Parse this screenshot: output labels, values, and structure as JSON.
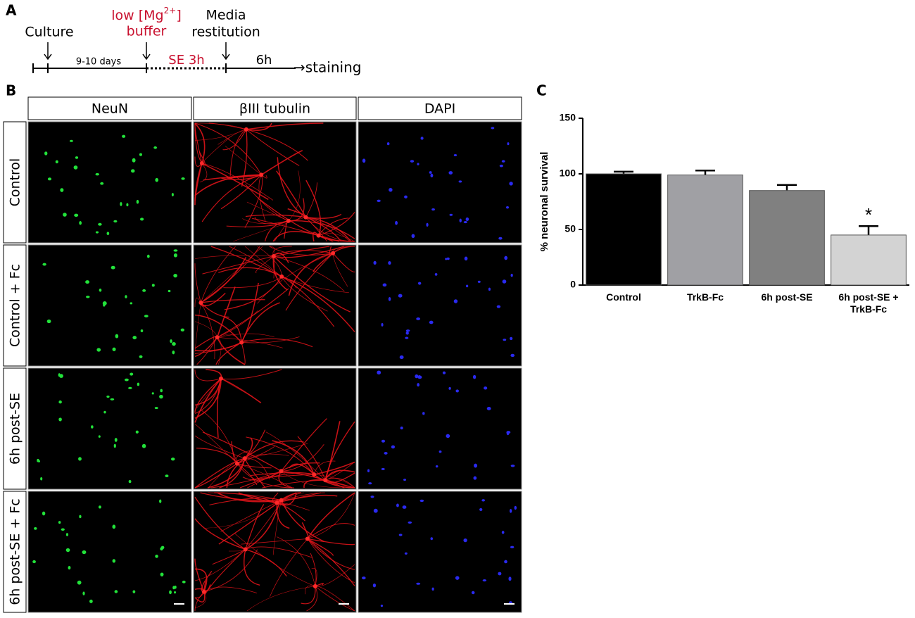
{
  "panel_labels": [
    "A",
    "B",
    "C"
  ],
  "timeline": {
    "culture": "Culture",
    "duration": "9-10 days",
    "buffer_line1": "low [Mg",
    "buffer_sup": "2+",
    "buffer_bracket": "]",
    "buffer_line2": "buffer",
    "se": "SE 3h",
    "media_line1": "Media",
    "media_line2": "restitution",
    "six_h": "6h",
    "staining": "→staining"
  },
  "grid": {
    "columns": [
      "NeuN",
      "βIII tubulin",
      "DAPI"
    ],
    "rows": [
      "Control",
      "Control + Fc",
      "6h post-SE",
      "6h post-SE + Fc"
    ]
  },
  "chart_data": {
    "type": "bar",
    "y_label": "% neuronal survival",
    "categories": [
      "Control",
      "TrkB-Fc",
      "6h post-SE",
      "6h post-SE + TrkB-Fc"
    ],
    "values": [
      100,
      99,
      85,
      45
    ],
    "errors": [
      2,
      4,
      5,
      8
    ],
    "colors": [
      "#000000",
      "#a0a0a4",
      "#808080",
      "#d3d3d3"
    ],
    "ylim": [
      0,
      150
    ],
    "yticks": [
      0,
      50,
      100,
      150
    ],
    "annotation": "*"
  }
}
